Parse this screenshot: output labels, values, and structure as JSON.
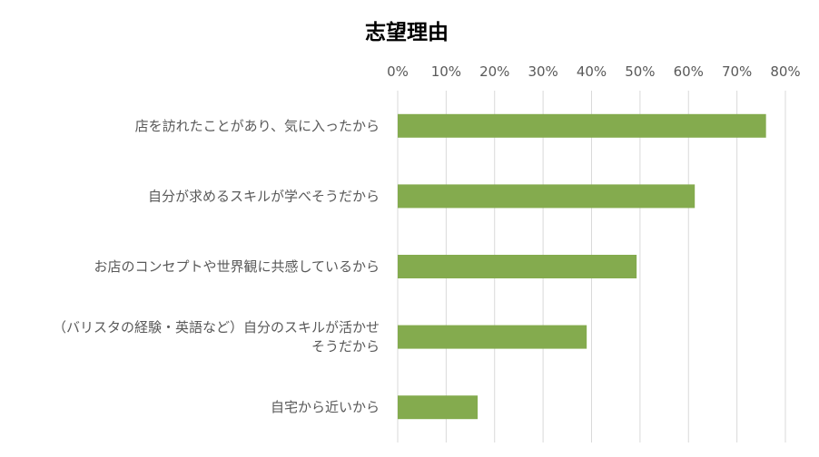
{
  "chart_data": {
    "type": "bar",
    "orientation": "horizontal",
    "title": "志望理由",
    "categories": [
      [
        "店を訪れたことがあり、気に入ったから"
      ],
      [
        "自分が求めるスキルが学べそうだから"
      ],
      [
        "お店のコンセプトや世界観に共感しているから"
      ],
      [
        "（バリスタの経験・英語など）自分のスキルが活かせ",
        "そうだから"
      ],
      [
        "自宅から近いから"
      ]
    ],
    "values": [
      0.76,
      0.613,
      0.493,
      0.39,
      0.165
    ],
    "xlim": [
      0,
      0.8
    ],
    "xticks": [
      "0%",
      "10%",
      "20%",
      "30%",
      "40%",
      "50%",
      "60%",
      "70%",
      "80%"
    ],
    "x_axis_position": "top",
    "grid": true,
    "legend": "none",
    "bar_color": "#84ab4e"
  }
}
